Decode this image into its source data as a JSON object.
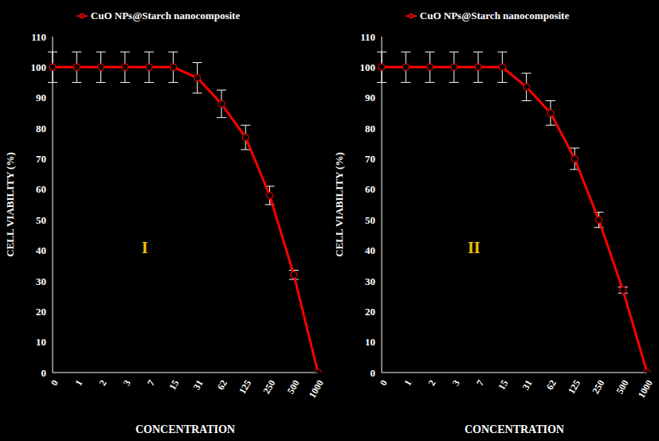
{
  "chart_data": [
    {
      "type": "line",
      "annotation": "I",
      "xlabel": "CONCENTRATION",
      "ylabel": "CELL VIABILITY (%)",
      "categories": [
        "0",
        "1",
        "2",
        "3",
        "7",
        "15",
        "31",
        "62",
        "125",
        "250",
        "500",
        "1000"
      ],
      "series": [
        {
          "name": "CuO NPs@Starch nanocomposite",
          "color": "#ff0000",
          "marker": "circle",
          "line_style": "solid",
          "values": [
            100,
            100,
            100,
            100,
            100,
            100,
            96.5,
            88,
            77,
            58,
            32,
            0
          ],
          "error": [
            5,
            5,
            5,
            5,
            5,
            5,
            5,
            4.5,
            4,
            3,
            1.5,
            0
          ]
        }
      ],
      "ylim": [
        0,
        110
      ],
      "yticks": [
        0,
        10,
        20,
        30,
        40,
        50,
        60,
        70,
        80,
        90,
        100,
        110
      ],
      "grid": false,
      "legend": "top"
    },
    {
      "type": "line",
      "annotation": "II",
      "xlabel": "CONCENTRATION",
      "ylabel": "CELL VIABILITY (%)",
      "categories": [
        "0",
        "1",
        "2",
        "3",
        "7",
        "15",
        "31",
        "62",
        "125",
        "250",
        "500",
        "1000"
      ],
      "series": [
        {
          "name": "CuO NPs@Starch nanocomposite",
          "color": "#ff0000",
          "marker": "circle",
          "line_style": "solid",
          "values": [
            100,
            100,
            100,
            100,
            100,
            100,
            93.5,
            85,
            70,
            50,
            27,
            0
          ],
          "error": [
            5,
            5,
            5,
            5,
            5,
            5,
            4.5,
            4,
            3.5,
            2.5,
            1,
            0
          ]
        }
      ],
      "ylim": [
        0,
        110
      ],
      "yticks": [
        0,
        10,
        20,
        30,
        40,
        50,
        60,
        70,
        80,
        90,
        100,
        110
      ],
      "grid": false,
      "legend": "top"
    }
  ]
}
